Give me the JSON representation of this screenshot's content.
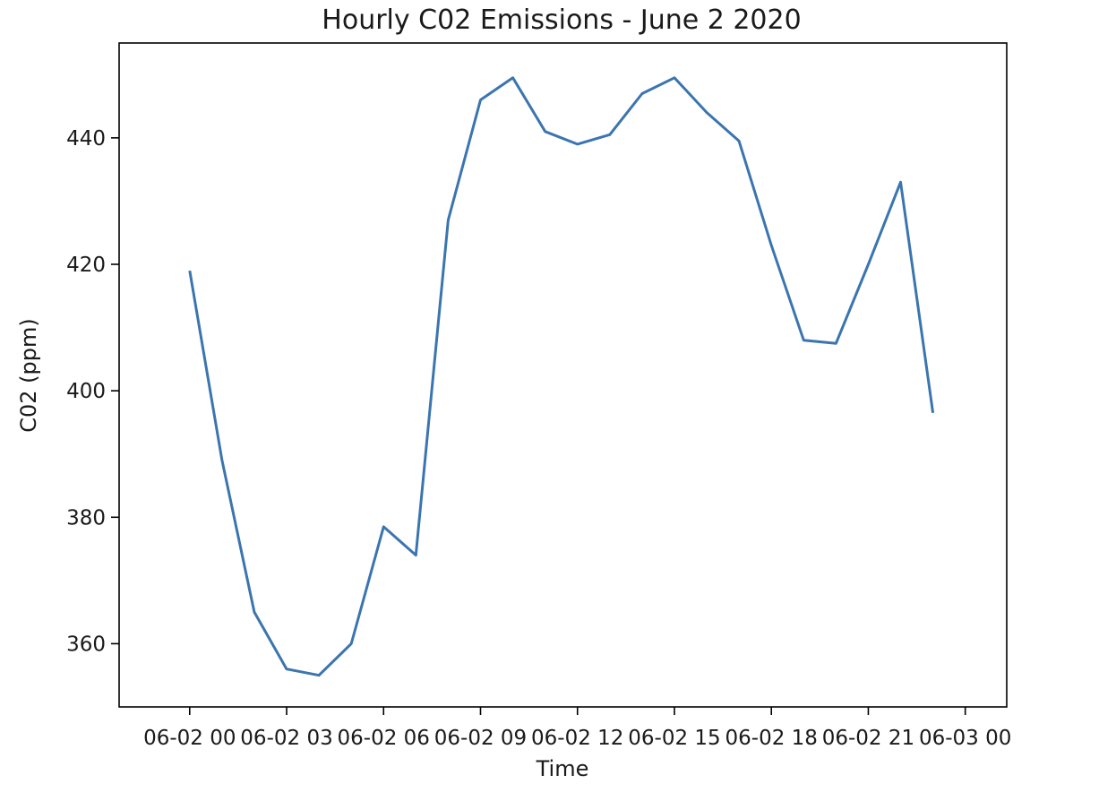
{
  "chart_data": {
    "type": "line",
    "title": "Hourly C02 Emissions - June 2 2020",
    "xlabel": "Time",
    "ylabel": "C02 (ppm)",
    "xlim": [
      "2020-06-01 21:49",
      "2020-06-03 01:17"
    ],
    "ylim": [
      350,
      455
    ],
    "grid": false,
    "line_color": "#3b75af",
    "x_ticks": [
      {
        "value": "2020-06-02 00:00",
        "label": "06-02 00"
      },
      {
        "value": "2020-06-02 03:00",
        "label": "06-02 03"
      },
      {
        "value": "2020-06-02 06:00",
        "label": "06-02 06"
      },
      {
        "value": "2020-06-02 09:00",
        "label": "06-02 09"
      },
      {
        "value": "2020-06-02 12:00",
        "label": "06-02 12"
      },
      {
        "value": "2020-06-02 15:00",
        "label": "06-02 15"
      },
      {
        "value": "2020-06-02 18:00",
        "label": "06-02 18"
      },
      {
        "value": "2020-06-02 21:00",
        "label": "06-02 21"
      },
      {
        "value": "2020-06-03 00:00",
        "label": "06-03 00"
      }
    ],
    "y_ticks": [
      {
        "value": 360,
        "label": "360"
      },
      {
        "value": 380,
        "label": "380"
      },
      {
        "value": 400,
        "label": "400"
      },
      {
        "value": 420,
        "label": "420"
      },
      {
        "value": 440,
        "label": "440"
      }
    ],
    "series": [
      {
        "x": [
          "2020-06-02 00:00",
          "2020-06-02 01:00",
          "2020-06-02 02:00",
          "2020-06-02 03:00",
          "2020-06-02 04:00",
          "2020-06-02 05:00",
          "2020-06-02 06:00",
          "2020-06-02 07:00",
          "2020-06-02 08:00",
          "2020-06-02 09:00",
          "2020-06-02 10:00",
          "2020-06-02 11:00",
          "2020-06-02 12:00",
          "2020-06-02 13:00",
          "2020-06-02 14:00",
          "2020-06-02 15:00",
          "2020-06-02 16:00",
          "2020-06-02 17:00",
          "2020-06-02 18:00",
          "2020-06-02 19:00",
          "2020-06-02 20:00",
          "2020-06-02 21:00",
          "2020-06-02 22:00",
          "2020-06-02 23:00"
        ],
        "y": [
          419,
          389,
          365,
          356,
          355,
          360,
          378.5,
          374,
          427,
          446,
          449.5,
          441,
          439,
          440.5,
          447,
          449.5,
          444,
          439.5,
          423,
          408,
          407.5,
          420,
          433,
          396.5
        ]
      }
    ]
  }
}
